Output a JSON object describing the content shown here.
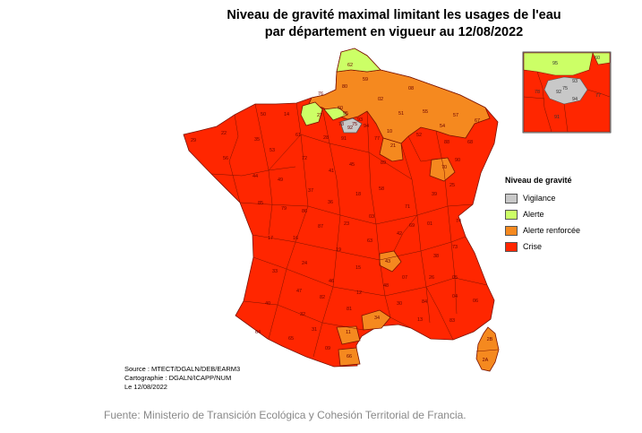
{
  "title": {
    "line1": "Niveau de gravité maximal limitant les usages de l'eau",
    "line2": "par département en vigueur au 12/08/2022"
  },
  "legend": {
    "title": "Niveau de gravité",
    "items": [
      {
        "label": "Vigilance",
        "color": "#c8c8c8"
      },
      {
        "label": "Alerte",
        "color": "#ccff66"
      },
      {
        "label": "Alerte renforcée",
        "color": "#f5891f"
      },
      {
        "label": "Crise",
        "color": "#ff2600"
      }
    ]
  },
  "source": {
    "line1": "Source : MTECT/DGALN/DEB/EARM3",
    "line2": "Cartographie : DGALN/ICAPP/NUM",
    "line3": "Le 12/08/2022"
  },
  "caption": "Fuente: Ministerio de Transición Ecológica y Cohesión Territorial de Francia.",
  "departments": [
    {
      "code": "62",
      "level": "alerte"
    },
    {
      "code": "59",
      "level": "alerte"
    },
    {
      "code": "80",
      "level": "alerte_renforcee"
    },
    {
      "code": "76",
      "level": "alerte_renforcee"
    },
    {
      "code": "27",
      "level": "alerte"
    },
    {
      "code": "60",
      "level": "alerte"
    },
    {
      "code": "02",
      "level": "alerte_renforcee"
    },
    {
      "code": "08",
      "level": "alerte_renforcee"
    },
    {
      "code": "51",
      "level": "alerte_renforcee"
    },
    {
      "code": "55",
      "level": "alerte_renforcee"
    },
    {
      "code": "57",
      "level": "alerte_renforcee"
    },
    {
      "code": "67",
      "level": "alerte_renforcee"
    },
    {
      "code": "10",
      "level": "alerte_renforcee"
    },
    {
      "code": "52",
      "level": "alerte_renforcee"
    },
    {
      "code": "54",
      "level": "alerte_renforcee"
    },
    {
      "code": "88",
      "level": "alerte_renforcee"
    },
    {
      "code": "21",
      "level": "alerte_renforcee"
    },
    {
      "code": "70",
      "level": "alerte_renforcee"
    },
    {
      "code": "95",
      "level": "vigilance"
    },
    {
      "code": "75",
      "level": "vigilance"
    },
    {
      "code": "92",
      "level": "vigilance"
    },
    {
      "code": "93",
      "level": "vigilance"
    },
    {
      "code": "78",
      "level": "vigilance"
    },
    {
      "code": "43",
      "level": "alerte_renforcee"
    },
    {
      "code": "34",
      "level": "alerte_renforcee"
    },
    {
      "code": "11",
      "level": "alerte_renforcee"
    },
    {
      "code": "66",
      "level": "alerte_renforcee"
    },
    {
      "code": "2B",
      "level": "alerte_renforcee"
    },
    {
      "code": "2A",
      "level": "alerte_renforcee"
    },
    {
      "code": "14",
      "level": "crise"
    },
    {
      "code": "50",
      "level": "crise"
    },
    {
      "code": "29",
      "level": "crise"
    },
    {
      "code": "22",
      "level": "crise"
    },
    {
      "code": "56",
      "level": "crise"
    },
    {
      "code": "35",
      "level": "crise"
    },
    {
      "code": "53",
      "level": "crise"
    },
    {
      "code": "61",
      "level": "crise"
    },
    {
      "code": "28",
      "level": "crise"
    },
    {
      "code": "45",
      "level": "crise"
    },
    {
      "code": "89",
      "level": "crise"
    },
    {
      "code": "44",
      "level": "crise"
    },
    {
      "code": "49",
      "level": "crise"
    },
    {
      "code": "72",
      "level": "crise"
    },
    {
      "code": "37",
      "level": "crise"
    },
    {
      "code": "41",
      "level": "crise"
    },
    {
      "code": "18",
      "level": "crise"
    },
    {
      "code": "58",
      "level": "crise"
    },
    {
      "code": "85",
      "level": "crise"
    },
    {
      "code": "79",
      "level": "crise"
    },
    {
      "code": "86",
      "level": "crise"
    },
    {
      "code": "36",
      "level": "crise"
    },
    {
      "code": "71",
      "level": "crise"
    },
    {
      "code": "39",
      "level": "crise"
    },
    {
      "code": "25",
      "level": "crise"
    },
    {
      "code": "17",
      "level": "crise"
    },
    {
      "code": "16",
      "level": "crise"
    },
    {
      "code": "87",
      "level": "crise"
    },
    {
      "code": "23",
      "level": "crise"
    },
    {
      "code": "03",
      "level": "crise"
    },
    {
      "code": "63",
      "level": "crise"
    },
    {
      "code": "42",
      "level": "crise"
    },
    {
      "code": "69",
      "level": "crise"
    },
    {
      "code": "01",
      "level": "crise"
    },
    {
      "code": "74",
      "level": "crise"
    },
    {
      "code": "73",
      "level": "crise"
    },
    {
      "code": "38",
      "level": "crise"
    },
    {
      "code": "33",
      "level": "crise"
    },
    {
      "code": "24",
      "level": "crise"
    },
    {
      "code": "19",
      "level": "crise"
    },
    {
      "code": "15",
      "level": "crise"
    },
    {
      "code": "07",
      "level": "crise"
    },
    {
      "code": "26",
      "level": "crise"
    },
    {
      "code": "05",
      "level": "crise"
    },
    {
      "code": "47",
      "level": "crise"
    },
    {
      "code": "46",
      "level": "crise"
    },
    {
      "code": "12",
      "level": "crise"
    },
    {
      "code": "48",
      "level": "crise"
    },
    {
      "code": "30",
      "level": "crise"
    },
    {
      "code": "84",
      "level": "crise"
    },
    {
      "code": "04",
      "level": "crise"
    },
    {
      "code": "06",
      "level": "crise"
    },
    {
      "code": "40",
      "level": "crise"
    },
    {
      "code": "32",
      "level": "crise"
    },
    {
      "code": "82",
      "level": "crise"
    },
    {
      "code": "81",
      "level": "crise"
    },
    {
      "code": "64",
      "level": "crise"
    },
    {
      "code": "65",
      "level": "crise"
    },
    {
      "code": "31",
      "level": "crise"
    },
    {
      "code": "09",
      "level": "crise"
    },
    {
      "code": "13",
      "level": "crise"
    },
    {
      "code": "83",
      "level": "crise"
    },
    {
      "code": "68",
      "level": "crise"
    },
    {
      "code": "90",
      "level": "crise"
    },
    {
      "code": "77",
      "level": "crise"
    },
    {
      "code": "91",
      "level": "crise"
    },
    {
      "code": "94",
      "level": "crise"
    }
  ]
}
